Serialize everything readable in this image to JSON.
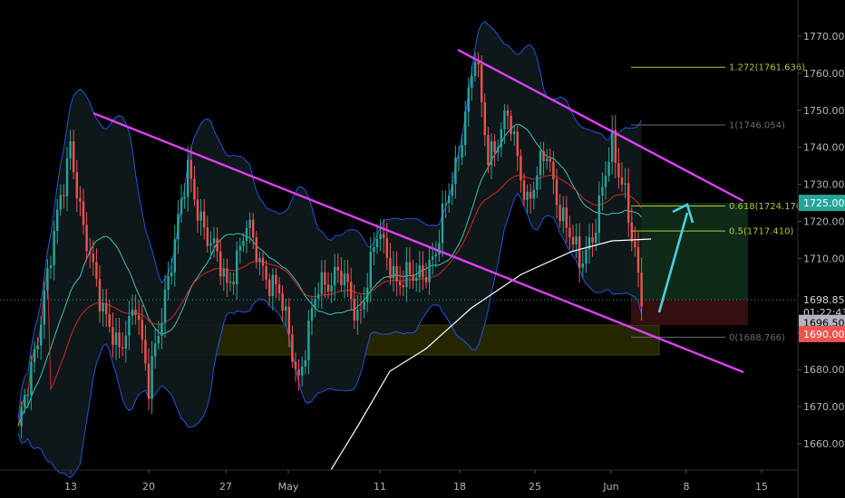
{
  "chart_data": {
    "type": "candlestick",
    "y_axis": {
      "ticks": [
        1660,
        1670,
        1680,
        1690,
        1700,
        1710,
        1720,
        1730,
        1740,
        1750,
        1760,
        1770
      ],
      "tick_labels": [
        "1660.000",
        "1670.000",
        "1680.000",
        "1690.000",
        "1700.000",
        "1710.000",
        "1720.000",
        "1730.000",
        "1740.000",
        "1750.000",
        "1760.000",
        "1770.000"
      ],
      "range": [
        1656,
        1775
      ]
    },
    "x_axis": {
      "tick_labels": [
        "13",
        "20",
        "27",
        "May",
        "11",
        "18",
        "25",
        "Jun",
        "8",
        "15"
      ]
    },
    "price_tags": [
      {
        "label": "1725.000",
        "value": 1725.0,
        "color": "#26a69a"
      },
      {
        "label": "1698.851",
        "value": 1698.851,
        "color": "#000000"
      },
      {
        "label": "01:22:43",
        "value": 1695.4,
        "color": "#000000"
      },
      {
        "label": "1696.500",
        "value": 1692.6,
        "color": "#b2b5be"
      },
      {
        "label": "1690.000",
        "value": 1689.6,
        "color": "#ef5350"
      }
    ],
    "fib_levels": [
      {
        "label": "1.272(1761.636)",
        "value": 1761.636,
        "color": "#b5c62f"
      },
      {
        "label": "1(1746.054)",
        "value": 1746.054,
        "color": "#6b6b6b"
      },
      {
        "label": "0.618(1724.170)",
        "value": 1724.17,
        "color": "#b5c62f"
      },
      {
        "label": "0.5(1717.410)",
        "value": 1717.41,
        "color": "#b5c62f"
      },
      {
        "label": "0(1688.766)",
        "value": 1688.766,
        "color": "#6b6b6b"
      }
    ],
    "current_price": 1698.851,
    "support_zone": [
      1684,
      1692
    ],
    "trend_lines": [
      {
        "name": "upper-descending",
        "from": [
          0,
          1749
        ],
        "to": [
          1,
          1720
        ],
        "color": "#e040fb"
      },
      {
        "name": "lower-descending",
        "from": [
          0,
          1749
        ],
        "to": [
          1,
          1680
        ],
        "color": "#e040fb"
      }
    ],
    "colors": {
      "up": "#26a69a",
      "down": "#ef5350",
      "trendline": "#e040fb",
      "zone": "#c8c800",
      "sma": "#ffffff",
      "band": "#2962ff",
      "basis": "#40c4b0",
      "ema": "#ff3030",
      "arrow": "#4dd0e1",
      "axis_text": "#b2b5be",
      "background": "#000000"
    }
  }
}
